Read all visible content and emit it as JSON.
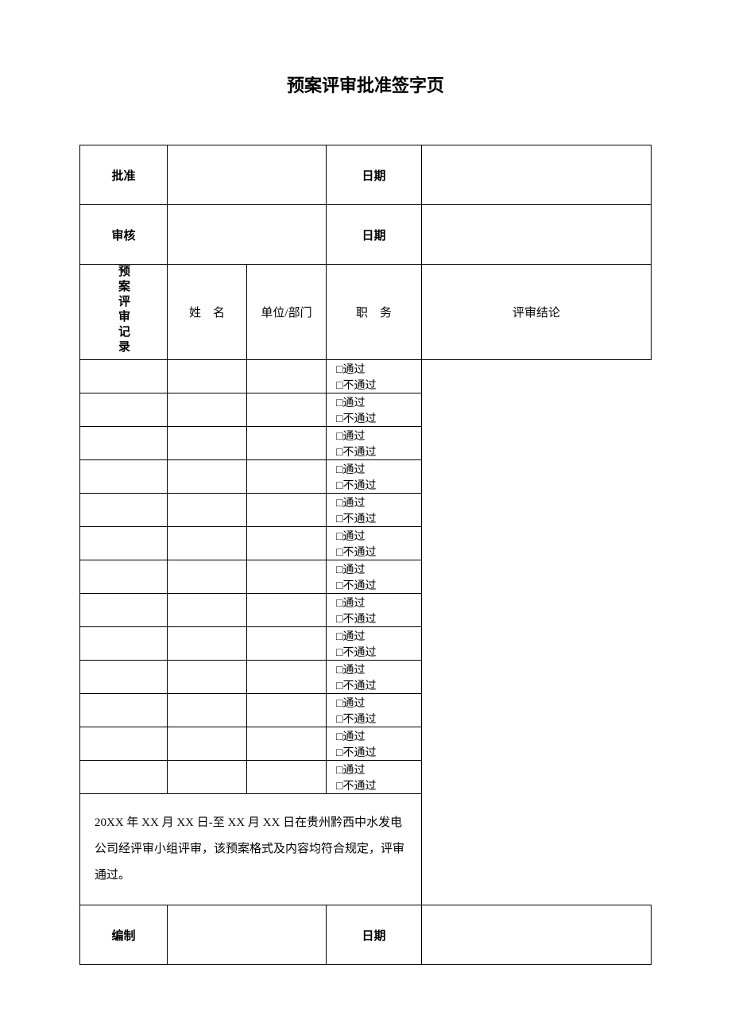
{
  "title": "预案评审批准签字页",
  "rows": {
    "approval": {
      "label": "批准",
      "date_label": "日期"
    },
    "audit": {
      "label": "审核",
      "date_label": "日期"
    },
    "compile": {
      "label": "编制",
      "date_label": "日期"
    }
  },
  "review_section": {
    "label": "预案评审记录",
    "headers": {
      "name": "姓　名",
      "dept": "单位/部门",
      "duty": "职　务",
      "result": "评审结论"
    },
    "result_options": {
      "pass": "□通过",
      "fail": "□不通过"
    },
    "row_count": 13,
    "summary": "20XX 年 XX 月 XX 日-至 XX 月 XX 日在贵州黔西中水发电公司经评审小组评审，该预案格式及内容均符合规定，评审通过。"
  },
  "colors": {
    "border": "#000000",
    "background": "#ffffff",
    "text": "#000000"
  }
}
